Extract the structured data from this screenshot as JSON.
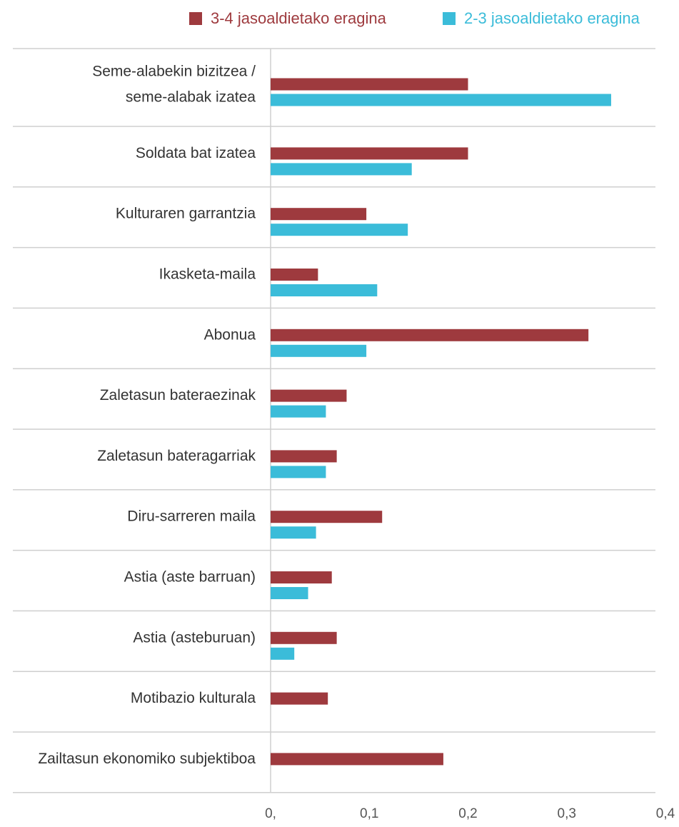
{
  "chart_data": {
    "type": "hbar",
    "categories": [
      "Seme-alabekin bizitzea /\nseme-alabak izatea",
      "Soldata bat izatea",
      "Kulturaren garrantzia",
      "Ikasketa-maila",
      "Abonua",
      "Zaletasun bateraezinak",
      "Zaletasun bateragarriak",
      "Diru-sarreren maila",
      "Astia (aste barruan)",
      "Astia (asteburuan)",
      "Motibazio kulturala",
      "Zailtasun ekonomiko subjektiboa"
    ],
    "series": [
      {
        "name": "3-4 jasoaldietako eragina",
        "color": "#9e3a3e",
        "values": [
          0.2,
          0.2,
          0.097,
          0.048,
          0.322,
          0.077,
          0.067,
          0.113,
          0.062,
          0.067,
          0.058,
          0.175
        ]
      },
      {
        "name": "2-3 jasoaldietako eragina",
        "color": "#3bbcd9",
        "values": [
          0.345,
          0.143,
          0.139,
          0.108,
          0.097,
          0.056,
          0.056,
          0.046,
          0.038,
          0.024,
          null,
          null
        ]
      }
    ],
    "xlim": [
      0,
      0.4
    ],
    "xticks": [
      {
        "value": 0,
        "label": "0,"
      },
      {
        "value": 0.1,
        "label": "0,1"
      },
      {
        "value": 0.2,
        "label": "0,2"
      },
      {
        "value": 0.3,
        "label": "0,3"
      },
      {
        "value": 0.4,
        "label": "0,4"
      }
    ],
    "legend": "top"
  }
}
